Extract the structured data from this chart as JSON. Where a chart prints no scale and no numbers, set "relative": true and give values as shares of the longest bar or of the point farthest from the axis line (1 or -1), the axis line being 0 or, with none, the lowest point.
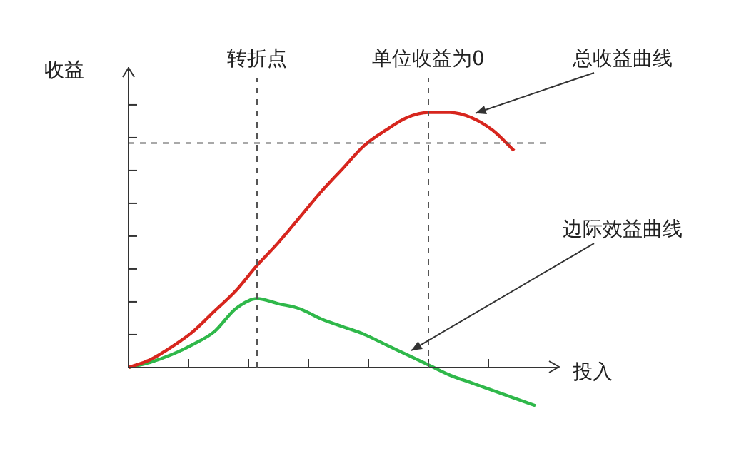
{
  "chart_data": {
    "type": "line",
    "relative": true,
    "xlabel": "投入",
    "ylabel": "收益",
    "categories": [
      null,
      null,
      null,
      null,
      null,
      null,
      null,
      null,
      null,
      null,
      null,
      null,
      null,
      null,
      null,
      null,
      null,
      null,
      null,
      null
    ],
    "series": [
      {
        "name": "总收益曲线",
        "color": "#d7261e",
        "values": [
          0,
          0.03,
          0.08,
          0.14,
          0.22,
          0.3,
          0.4,
          0.49,
          0.59,
          0.69,
          0.78,
          0.87,
          0.93,
          0.98,
          1,
          1,
          0.98,
          0.93,
          0.85,
          null
        ]
      },
      {
        "name": "边际效益曲线",
        "color": "#2fb84a",
        "values": [
          0,
          0.02,
          0.05,
          0.09,
          0.14,
          0.23,
          0.27,
          0.25,
          0.23,
          0.19,
          0.16,
          0.13,
          0.09,
          0.05,
          0.01,
          -0.03,
          -0.06,
          -0.09,
          -0.12,
          -0.15
        ]
      }
    ],
    "annotations": [
      "转折点",
      "单位收益为0"
    ],
    "ref_lines": [
      {
        "axis": "y",
        "value": 0.88,
        "line_style": "dashed"
      }
    ],
    "legend": false,
    "marker": "none",
    "line_style": "solid"
  }
}
